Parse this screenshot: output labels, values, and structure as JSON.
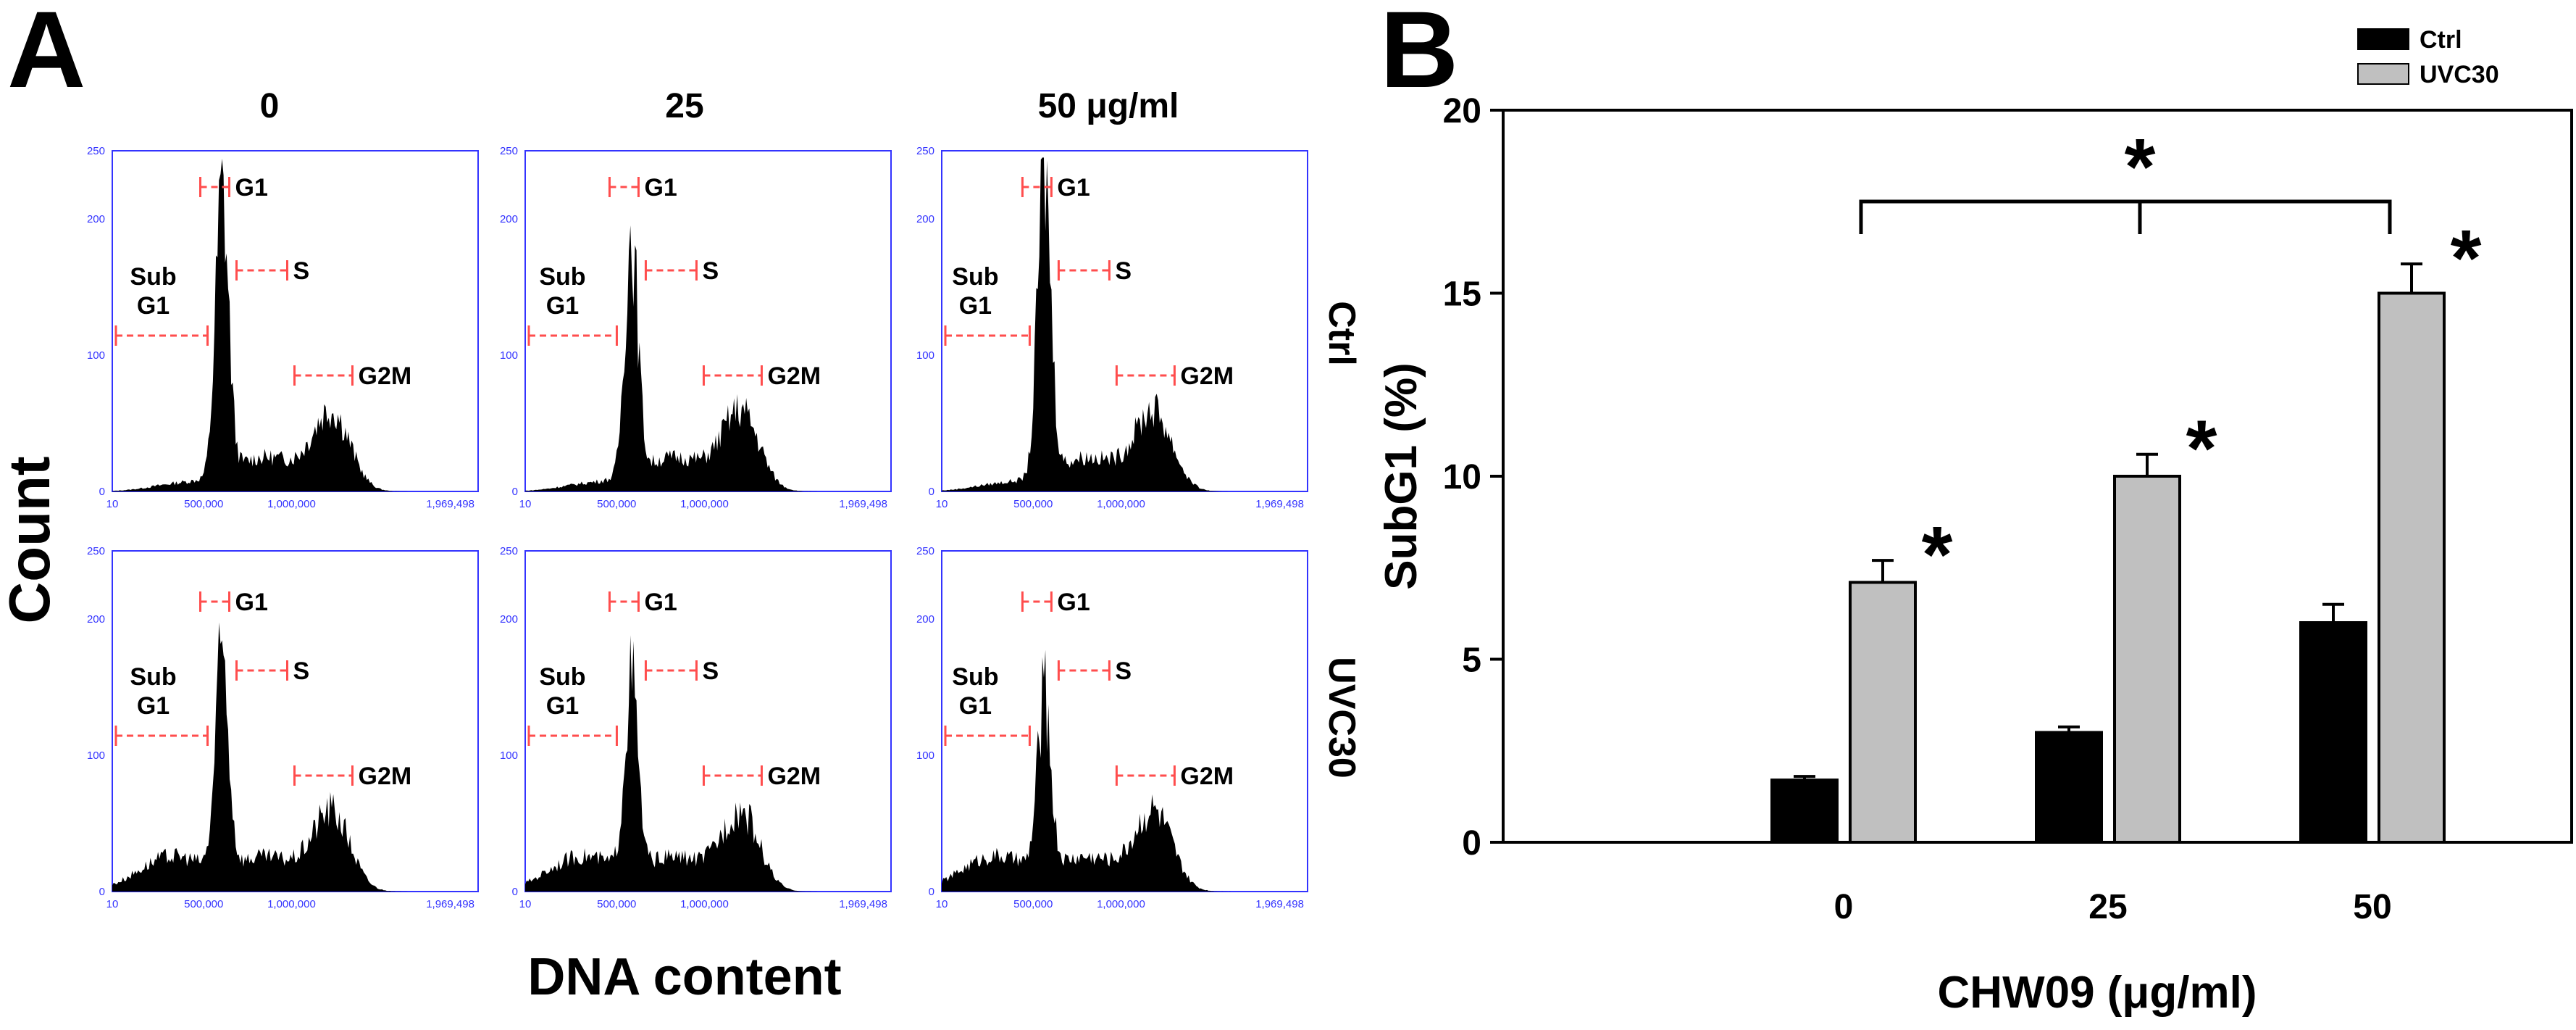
{
  "figure": {
    "panel_a_letter": "A",
    "panel_b_letter": "B",
    "panel_a_column_titles": [
      "0",
      "25",
      "50 μg/ml"
    ],
    "panel_a_row_titles": [
      "Ctrl",
      "UVC30"
    ],
    "panel_a_ylabel": "Count",
    "panel_a_xlabel": "DNA content",
    "gate_labels": {
      "sub": "Sub",
      "g1sub": "G1",
      "g1": "G1",
      "s": "S",
      "g2m": "G2M"
    },
    "histogram_yticks": [
      "0",
      "100",
      "200",
      "250"
    ],
    "histogram_xticks": [
      "10",
      "500,000",
      "1,000,000",
      "1,969,498"
    ],
    "histogram_color": "#000000",
    "axis_color": "#3333ff",
    "gate_color": "#ff4d4d"
  },
  "chart_data": [
    {
      "type": "area",
      "title": "0 / Ctrl",
      "x_range": [
        10,
        1969498
      ],
      "y_range": [
        0,
        250
      ],
      "peak_label_order": [
        "G1",
        "S",
        "G2M"
      ]
    },
    {
      "type": "area",
      "title": "25 / Ctrl",
      "x_range": [
        10,
        1969498
      ],
      "y_range": [
        0,
        250
      ]
    },
    {
      "type": "area",
      "title": "50 μg/ml / Ctrl",
      "x_range": [
        10,
        1969498
      ],
      "y_range": [
        0,
        250
      ]
    },
    {
      "type": "area",
      "title": "0 / UVC30",
      "x_range": [
        10,
        1969498
      ],
      "y_range": [
        0,
        250
      ]
    },
    {
      "type": "area",
      "title": "25 / UVC30",
      "x_range": [
        10,
        1969498
      ],
      "y_range": [
        0,
        250
      ]
    },
    {
      "type": "area",
      "title": "50 μg/ml / UVC30",
      "x_range": [
        10,
        1969498
      ],
      "y_range": [
        0,
        250
      ]
    },
    {
      "type": "bar",
      "categories": [
        "0",
        "25",
        "50"
      ],
      "series": [
        {
          "name": "Ctrl",
          "values": [
            1.7,
            3.0,
            6.0
          ],
          "errors": [
            0.1,
            0.15,
            0.5
          ],
          "color": "#000000"
        },
        {
          "name": "UVC30",
          "values": [
            7.1,
            10.0,
            15.0
          ],
          "errors": [
            0.6,
            0.6,
            0.8
          ],
          "color": "#c0c0c0"
        }
      ],
      "xlabel": "CHW09 (μg/ml)",
      "ylabel": "SubG1 (%)",
      "ylim": [
        0,
        20
      ],
      "yticks": [
        "0",
        "5",
        "10",
        "15",
        "20"
      ],
      "significance_marks": [
        "*",
        "*",
        "*",
        "*"
      ],
      "legend_placement": "top-right",
      "grid": false
    }
  ]
}
